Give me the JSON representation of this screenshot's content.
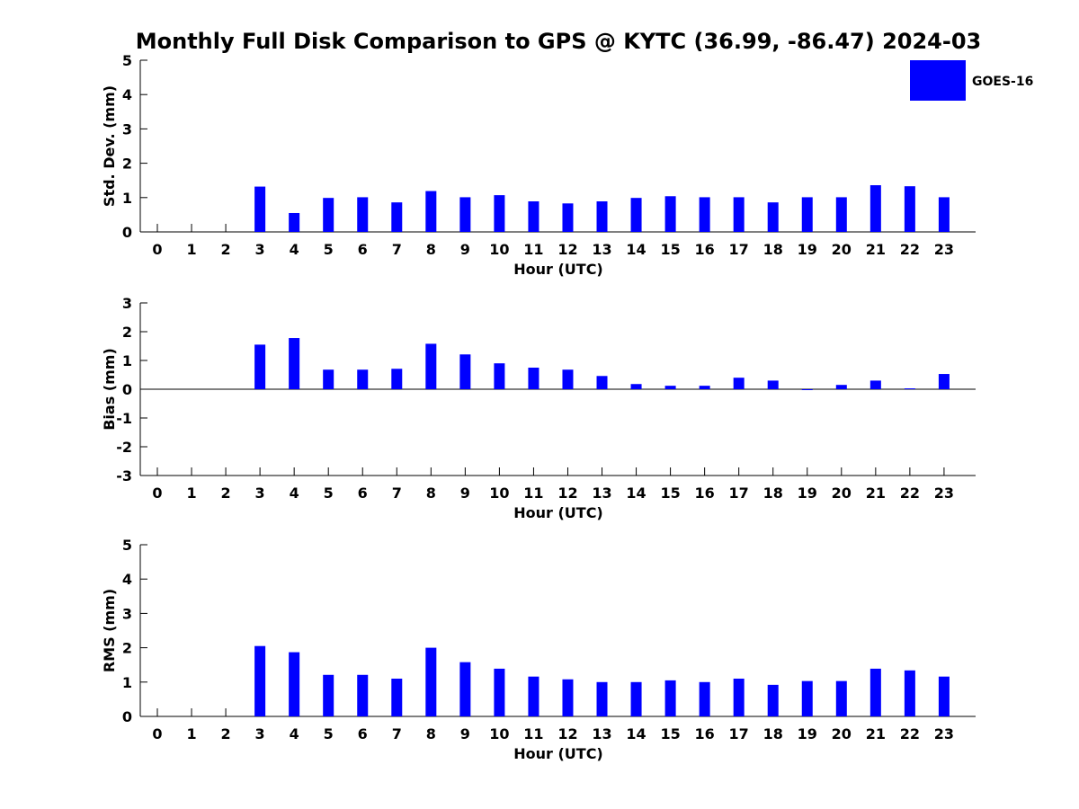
{
  "title": "Monthly Full Disk Comparison to GPS @ KYTC (36.99, -86.47) 2024-03",
  "legend": {
    "label": "GOES-16",
    "color": "#0000ff",
    "position": "top-right"
  },
  "chart_data": [
    {
      "type": "bar",
      "ylabel": "Std. Dev. (mm)",
      "xlabel": "Hour (UTC)",
      "ylim": [
        0,
        5
      ],
      "yticks": [
        "0",
        "1",
        "2",
        "3",
        "4",
        "5"
      ],
      "categories": [
        "0",
        "1",
        "2",
        "3",
        "4",
        "5",
        "6",
        "7",
        "8",
        "9",
        "10",
        "11",
        "12",
        "13",
        "14",
        "15",
        "16",
        "17",
        "18",
        "19",
        "20",
        "21",
        "22",
        "23"
      ],
      "series": [
        {
          "name": "GOES-16",
          "values": [
            null,
            null,
            null,
            1.32,
            0.55,
            0.99,
            1.01,
            0.86,
            1.19,
            1.01,
            1.07,
            0.89,
            0.83,
            0.89,
            0.99,
            1.04,
            1.01,
            1.01,
            0.86,
            1.01,
            1.01,
            1.36,
            1.33,
            1.01
          ]
        }
      ],
      "grid": false
    },
    {
      "type": "bar",
      "ylabel": "Bias (mm)",
      "xlabel": "Hour (UTC)",
      "ylim": [
        -3,
        3
      ],
      "yticks": [
        "-3",
        "-2",
        "-1",
        "0",
        "1",
        "2",
        "3"
      ],
      "categories": [
        "0",
        "1",
        "2",
        "3",
        "4",
        "5",
        "6",
        "7",
        "8",
        "9",
        "10",
        "11",
        "12",
        "13",
        "14",
        "15",
        "16",
        "17",
        "18",
        "19",
        "20",
        "21",
        "22",
        "23"
      ],
      "series": [
        {
          "name": "GOES-16",
          "values": [
            null,
            null,
            null,
            1.55,
            1.78,
            0.68,
            0.68,
            0.71,
            1.58,
            1.21,
            0.9,
            0.75,
            0.68,
            0.46,
            0.18,
            0.12,
            0.12,
            0.4,
            0.3,
            -0.02,
            0.15,
            0.3,
            0.03,
            0.53
          ]
        }
      ],
      "grid": false
    },
    {
      "type": "bar",
      "ylabel": "RMS (mm)",
      "xlabel": "Hour (UTC)",
      "ylim": [
        0,
        5
      ],
      "yticks": [
        "0",
        "1",
        "2",
        "3",
        "4",
        "5"
      ],
      "categories": [
        "0",
        "1",
        "2",
        "3",
        "4",
        "5",
        "6",
        "7",
        "8",
        "9",
        "10",
        "11",
        "12",
        "13",
        "14",
        "15",
        "16",
        "17",
        "18",
        "19",
        "20",
        "21",
        "22",
        "23"
      ],
      "series": [
        {
          "name": "GOES-16",
          "values": [
            null,
            null,
            null,
            2.05,
            1.87,
            1.21,
            1.21,
            1.1,
            2.0,
            1.58,
            1.39,
            1.16,
            1.08,
            1.0,
            1.0,
            1.05,
            1.0,
            1.1,
            0.92,
            1.03,
            1.03,
            1.39,
            1.34,
            1.16
          ]
        }
      ],
      "grid": false
    }
  ]
}
